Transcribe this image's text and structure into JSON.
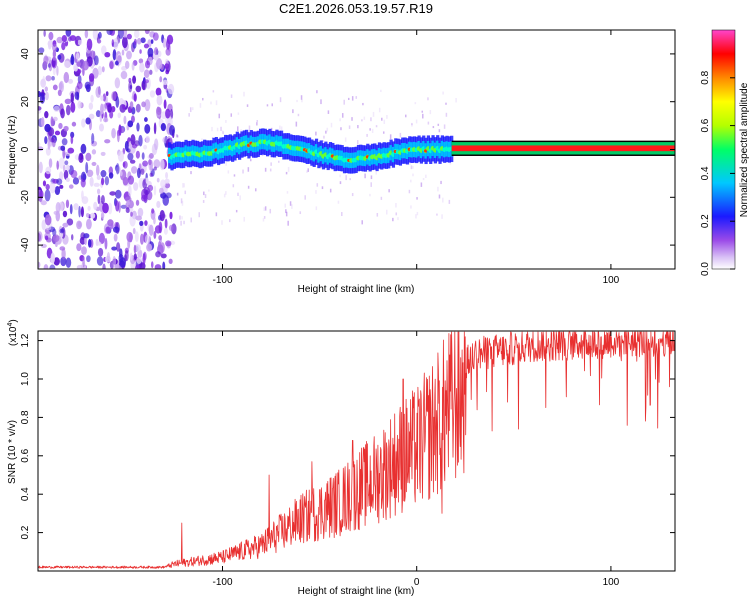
{
  "title": "C2E1.2026.053.19.57.R19",
  "chart_data": [
    {
      "type": "heatmap",
      "name": "spectrogram",
      "xlabel": "Height of straight line (km)",
      "ylabel": "Frequency (Hz)",
      "xlim": [
        -195,
        133
      ],
      "ylim": [
        -50,
        50
      ],
      "xticks": [
        -100,
        0,
        100
      ],
      "xtick_labels": [
        "-100",
        "",
        "100"
      ],
      "yticks": [
        -40,
        -20,
        0,
        20,
        40
      ],
      "ytick_labels": [
        "-40",
        "-20",
        "0",
        "20",
        "40"
      ],
      "colorbar": {
        "label": "Normalized spectral amplitude",
        "range": [
          0,
          1
        ],
        "ticks": [
          0.0,
          0.2,
          0.4,
          0.6,
          0.8
        ],
        "tick_labels": [
          "0.0",
          "0.2",
          "0.4",
          "0.6",
          "0.8"
        ],
        "colors": [
          "#ffffff",
          "#c7a3f0",
          "#7a22e0",
          "#1a1aff",
          "#00c8ff",
          "#00ff66",
          "#b4ff00",
          "#ffff00",
          "#ff8800",
          "#ff0000",
          "#ff44cc"
        ]
      },
      "noise_region": {
        "x_range": [
          -195,
          -125
        ],
        "y_range": [
          -50,
          50
        ]
      },
      "signal_track": {
        "x": [
          -130,
          -120,
          -110,
          -100,
          -90,
          -80,
          -70,
          -60,
          -50,
          -40,
          -30,
          -20,
          -10,
          0,
          10,
          18,
          40,
          60,
          80,
          100,
          120,
          133
        ],
        "frequency": [
          -3,
          -2,
          -2,
          0,
          2,
          3,
          2,
          0,
          -2,
          -4,
          -4,
          -3,
          -1,
          0,
          0,
          0.5,
          0.5,
          0.5,
          0.5,
          0.5,
          0.5,
          0.5
        ]
      }
    },
    {
      "type": "line",
      "name": "snr",
      "xlabel": "Height of straight line (km)",
      "ylabel": "SNR (10 * v/v)",
      "y_multiplier": "(x10",
      "y_multiplier_exp": "4",
      "y_multiplier_close": ")",
      "xlim": [
        -195,
        133
      ],
      "ylim": [
        0,
        1.25
      ],
      "xticks": [
        -100,
        0,
        100
      ],
      "xtick_labels": [
        "-100",
        "0",
        "100"
      ],
      "yticks": [
        0.2,
        0.4,
        0.6,
        0.8,
        1.0,
        1.2
      ],
      "ytick_labels": [
        "0.2",
        "0.4",
        "0.6",
        "0.8",
        "1.0",
        "1.2"
      ],
      "color": "#e83030",
      "trend": {
        "x": [
          -195,
          -130,
          -125,
          -100,
          -80,
          -60,
          -40,
          -20,
          -10,
          0,
          10,
          20,
          25,
          30,
          60,
          100,
          133
        ],
        "y": [
          0.02,
          0.02,
          0.04,
          0.08,
          0.15,
          0.3,
          0.4,
          0.55,
          0.65,
          0.72,
          0.85,
          1.0,
          1.05,
          1.1,
          1.15,
          1.17,
          1.18
        ]
      },
      "spikes": [
        {
          "x": -121,
          "y": 0.25
        },
        {
          "x": -76,
          "y": 0.5
        },
        {
          "x": -54,
          "y": 0.57
        },
        {
          "x": -33,
          "y": 0.68
        },
        {
          "x": -7,
          "y": 1.0
        },
        {
          "x": 13,
          "y": 0.3
        },
        {
          "x": 25,
          "y": 1.22
        },
        {
          "x": 95,
          "y": 1.22
        },
        {
          "x": 128,
          "y": 1.23
        }
      ]
    }
  ]
}
